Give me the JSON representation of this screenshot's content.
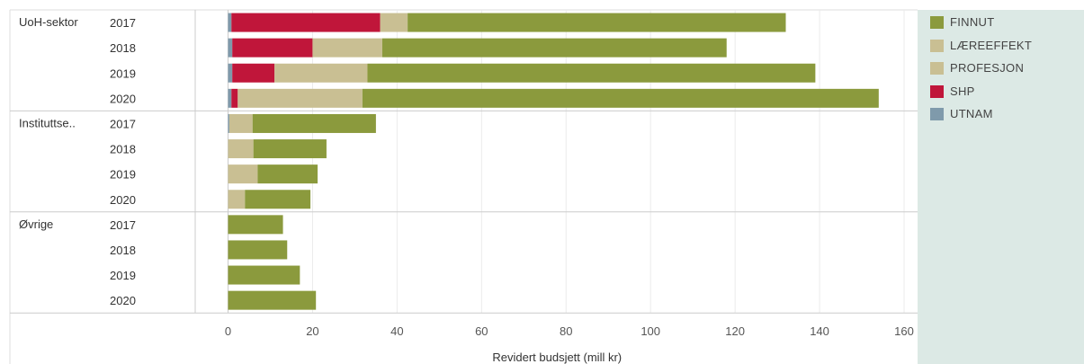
{
  "chart_data": {
    "type": "bar",
    "orientation": "horizontal",
    "stacked": true,
    "xlabel": "Revidert budsjett (mill kr)",
    "xlim": [
      0,
      160
    ],
    "xticks": [
      0,
      20,
      40,
      60,
      80,
      100,
      120,
      140,
      160
    ],
    "grid": true,
    "legend_position": "right",
    "stack_order": [
      "UTNAM",
      "SHP",
      "PROFESJON",
      "LÆREEFFEKT",
      "FINNUT"
    ],
    "legend": [
      {
        "name": "FINNUT",
        "color": "#8b9a3d"
      },
      {
        "name": "LÆREEFFEKT",
        "color": "#c9bf93"
      },
      {
        "name": "PROFESJON",
        "color": "#c9bf93"
      },
      {
        "name": "SHP",
        "color": "#c0163a"
      },
      {
        "name": "UTNAM",
        "color": "#7f9aab"
      }
    ],
    "groups": [
      {
        "name": "UoH-sektor",
        "rows": [
          {
            "year": "2017",
            "values": {
              "UTNAM": 0.8,
              "SHP": 35.2,
              "PROFESJON": 0,
              "LÆREEFFEKT": 6.5,
              "FINNUT": 89.5
            }
          },
          {
            "year": "2018",
            "values": {
              "UTNAM": 1.0,
              "SHP": 19.0,
              "PROFESJON": 0,
              "LÆREEFFEKT": 16.5,
              "FINNUT": 81.5
            }
          },
          {
            "year": "2019",
            "values": {
              "UTNAM": 1.0,
              "SHP": 10.0,
              "PROFESJON": 22.0,
              "LÆREEFFEKT": 0,
              "FINNUT": 106.0
            }
          },
          {
            "year": "2020",
            "values": {
              "UTNAM": 0.8,
              "SHP": 1.5,
              "PROFESJON": 29.5,
              "LÆREEFFEKT": 0,
              "FINNUT": 122.2
            }
          }
        ]
      },
      {
        "name": "Instituttse..",
        "rows": [
          {
            "year": "2017",
            "values": {
              "UTNAM": 0.3,
              "SHP": 0,
              "PROFESJON": 0,
              "LÆREEFFEKT": 5.5,
              "FINNUT": 29.2
            }
          },
          {
            "year": "2018",
            "values": {
              "UTNAM": 0,
              "SHP": 0,
              "PROFESJON": 0,
              "LÆREEFFEKT": 6.0,
              "FINNUT": 17.3
            }
          },
          {
            "year": "2019",
            "values": {
              "UTNAM": 0,
              "SHP": 0,
              "PROFESJON": 7.0,
              "LÆREEFFEKT": 0,
              "FINNUT": 14.2
            }
          },
          {
            "year": "2020",
            "values": {
              "UTNAM": 0,
              "SHP": 0,
              "PROFESJON": 4.0,
              "LÆREEFFEKT": 0,
              "FINNUT": 15.5
            }
          }
        ]
      },
      {
        "name": "Øvrige",
        "rows": [
          {
            "year": "2017",
            "values": {
              "UTNAM": 0,
              "SHP": 0,
              "PROFESJON": 0,
              "LÆREEFFEKT": 0,
              "FINNUT": 13.0
            }
          },
          {
            "year": "2018",
            "values": {
              "UTNAM": 0,
              "SHP": 0,
              "PROFESJON": 0,
              "LÆREEFFEKT": 0,
              "FINNUT": 14.0
            }
          },
          {
            "year": "2019",
            "values": {
              "UTNAM": 0,
              "SHP": 0,
              "PROFESJON": 0,
              "LÆREEFFEKT": 0,
              "FINNUT": 17.0
            }
          },
          {
            "year": "2020",
            "values": {
              "UTNAM": 0,
              "SHP": 0,
              "PROFESJON": 0,
              "LÆREEFFEKT": 0,
              "FINNUT": 20.8
            }
          }
        ]
      }
    ]
  }
}
